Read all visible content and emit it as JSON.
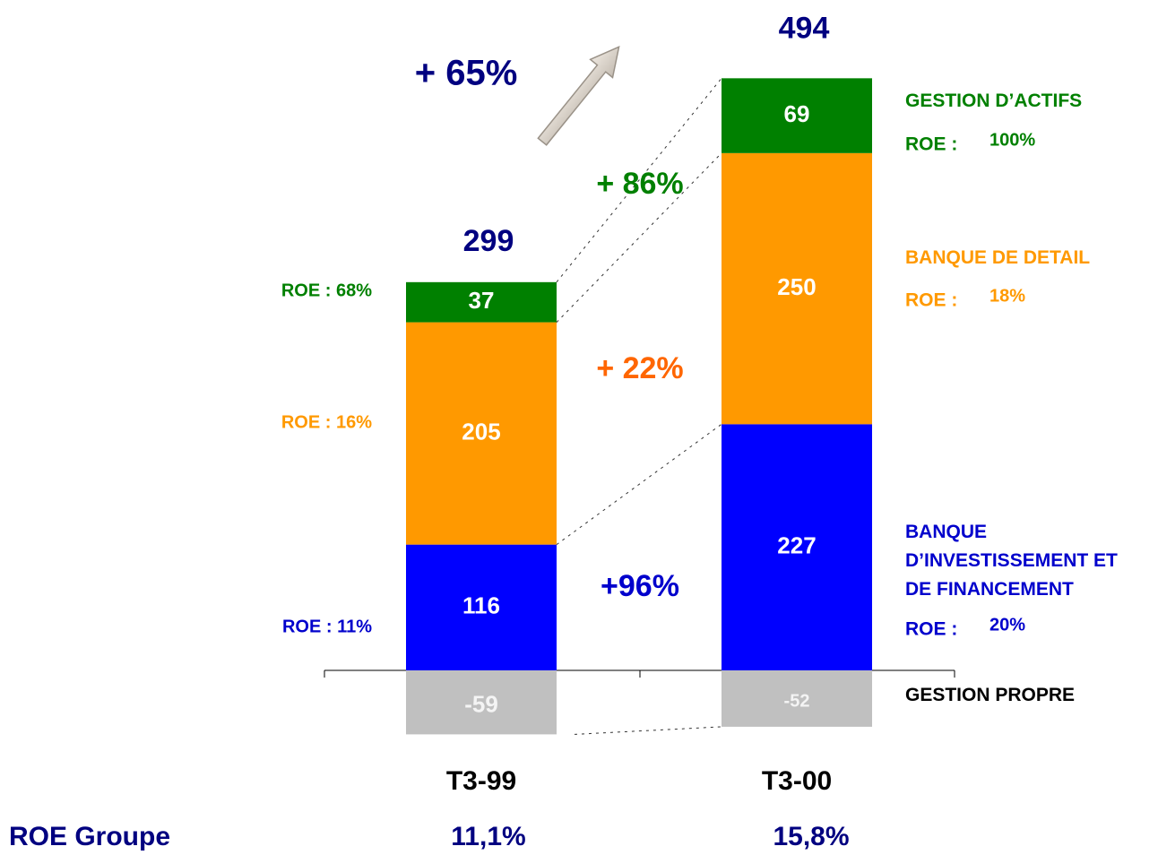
{
  "chart_data": {
    "type": "stacked_bar",
    "categories": [
      "T3-99",
      "T3-00"
    ],
    "series": [
      {
        "name": "BANQUE D’INVESTISSEMENT ET DE FINANCEMENT",
        "color": "#0000ff",
        "label_color": "#0000cc",
        "values": [
          116,
          227
        ],
        "roe_left": "ROE : 11%",
        "roe_right": "20%"
      },
      {
        "name": "BANQUE DE DETAIL",
        "color": "#ff9900",
        "label_color": "#ff9900",
        "values": [
          205,
          250
        ],
        "roe_left": "ROE : 16%",
        "roe_right": "18%"
      },
      {
        "name": "GESTION D’ACTIFS",
        "color": "#008000",
        "label_color": "#008000",
        "values": [
          37,
          69
        ],
        "roe_left": "ROE : 68%",
        "roe_right": "100%"
      },
      {
        "name": "GESTION PROPRE",
        "color": "#c0c0c0",
        "label_color": "#000000",
        "values": [
          -59,
          -52
        ]
      }
    ],
    "roe_prefix": "ROE :",
    "totals": [
      299,
      494
    ],
    "totals_color": "#000080",
    "growth": [
      {
        "label": "+96%",
        "color": "#0000cc"
      },
      {
        "label": "+ 22%",
        "color": "#ff6600"
      },
      {
        "label": "+ 86%",
        "color": "#008000"
      }
    ],
    "total_growth": "+ 65%",
    "group_roe": {
      "label": "ROE Groupe",
      "values": [
        "11,1%",
        "15,8%"
      ]
    }
  }
}
